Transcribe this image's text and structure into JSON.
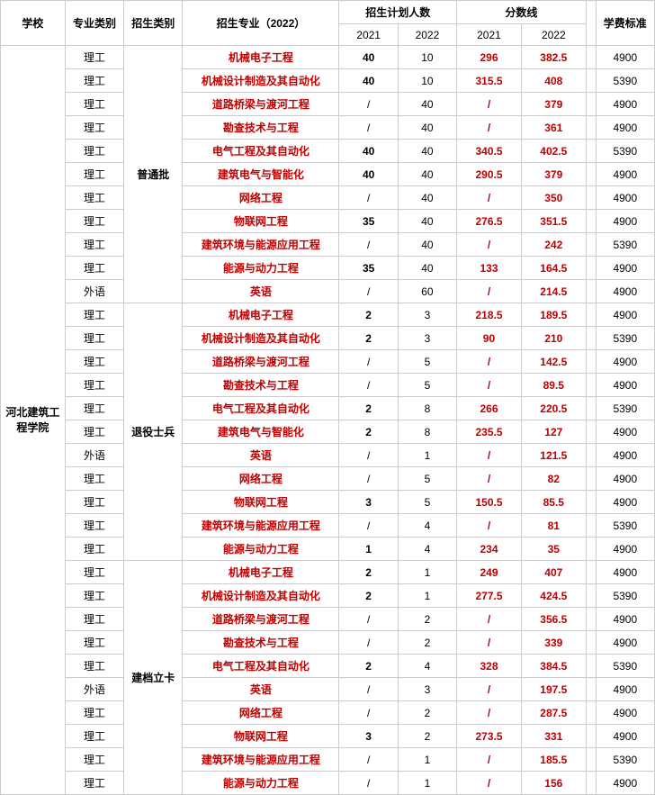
{
  "headers": {
    "school": "学校",
    "major_type": "专业类别",
    "admit_type": "招生类别",
    "major_2022": "招生专业（2022）",
    "plan_count": "招生计划人数",
    "score_line": "分数线",
    "tuition": "学费标准",
    "y2021": "2021",
    "y2022": "2022"
  },
  "school_name": "河北建筑工程学院",
  "colors": {
    "red": "#c00000",
    "black": "#000000",
    "border": "#cccccc",
    "bg": "#ffffff"
  },
  "col_widths": {
    "school": 66,
    "major_type": 60,
    "admit_type": 60,
    "major": 160,
    "plan_2021": 60,
    "plan_2022": 60,
    "score_2021": 66,
    "score_2022": 66,
    "tuition": 60,
    "spacer": 10
  },
  "groups": [
    {
      "admit_type": "普通批",
      "rows": [
        {
          "mt": "理工",
          "major": "机械电子工程",
          "p21": "40",
          "p21c": "b",
          "p22": "10",
          "p22c": "p",
          "s21": "296",
          "s21c": "r",
          "s22": "382.5",
          "s22c": "r",
          "tu": "4900"
        },
        {
          "mt": "理工",
          "major": "机械设计制造及其自动化",
          "p21": "40",
          "p21c": "b",
          "p22": "10",
          "p22c": "p",
          "s21": "315.5",
          "s21c": "r",
          "s22": "408",
          "s22c": "r",
          "tu": "5390"
        },
        {
          "mt": "理工",
          "major": "道路桥梁与渡河工程",
          "p21": "/",
          "p21c": "p",
          "p22": "40",
          "p22c": "p",
          "s21": "/",
          "s21c": "r",
          "s22": "379",
          "s22c": "r",
          "tu": "4900"
        },
        {
          "mt": "理工",
          "major": "勘查技术与工程",
          "p21": "/",
          "p21c": "p",
          "p22": "40",
          "p22c": "p",
          "s21": "/",
          "s21c": "r",
          "s22": "361",
          "s22c": "r",
          "tu": "4900"
        },
        {
          "mt": "理工",
          "major": "电气工程及其自动化",
          "p21": "40",
          "p21c": "b",
          "p22": "40",
          "p22c": "p",
          "s21": "340.5",
          "s21c": "r",
          "s22": "402.5",
          "s22c": "r",
          "tu": "5390"
        },
        {
          "mt": "理工",
          "major": "建筑电气与智能化",
          "p21": "40",
          "p21c": "b",
          "p22": "40",
          "p22c": "p",
          "s21": "290.5",
          "s21c": "r",
          "s22": "379",
          "s22c": "r",
          "tu": "4900"
        },
        {
          "mt": "理工",
          "major": "网络工程",
          "p21": "/",
          "p21c": "p",
          "p22": "40",
          "p22c": "p",
          "s21": "/",
          "s21c": "r",
          "s22": "350",
          "s22c": "r",
          "tu": "4900"
        },
        {
          "mt": "理工",
          "major": "物联网工程",
          "p21": "35",
          "p21c": "b",
          "p22": "40",
          "p22c": "p",
          "s21": "276.5",
          "s21c": "r",
          "s22": "351.5",
          "s22c": "r",
          "tu": "4900"
        },
        {
          "mt": "理工",
          "major": "建筑环境与能源应用工程",
          "p21": "/",
          "p21c": "p",
          "p22": "40",
          "p22c": "p",
          "s21": "/",
          "s21c": "r",
          "s22": "242",
          "s22c": "r",
          "tu": "5390"
        },
        {
          "mt": "理工",
          "major": "能源与动力工程",
          "p21": "35",
          "p21c": "b",
          "p22": "40",
          "p22c": "p",
          "s21": "133",
          "s21c": "r",
          "s22": "164.5",
          "s22c": "r",
          "tu": "4900"
        },
        {
          "mt": "外语",
          "major": "英语",
          "p21": "/",
          "p21c": "p",
          "p22": "60",
          "p22c": "p",
          "s21": "/",
          "s21c": "r",
          "s22": "214.5",
          "s22c": "r",
          "tu": "4900"
        }
      ]
    },
    {
      "admit_type": "退役士兵",
      "rows": [
        {
          "mt": "理工",
          "major": "机械电子工程",
          "p21": "2",
          "p21c": "b",
          "p22": "3",
          "p22c": "p",
          "s21": "218.5",
          "s21c": "r",
          "s22": "189.5",
          "s22c": "r",
          "tu": "4900"
        },
        {
          "mt": "理工",
          "major": "机械设计制造及其自动化",
          "p21": "2",
          "p21c": "b",
          "p22": "3",
          "p22c": "p",
          "s21": "90",
          "s21c": "r",
          "s22": "210",
          "s22c": "r",
          "tu": "5390"
        },
        {
          "mt": "理工",
          "major": "道路桥梁与渡河工程",
          "p21": "/",
          "p21c": "p",
          "p22": "5",
          "p22c": "p",
          "s21": "/",
          "s21c": "r",
          "s22": "142.5",
          "s22c": "r",
          "tu": "4900"
        },
        {
          "mt": "理工",
          "major": "勘查技术与工程",
          "p21": "/",
          "p21c": "p",
          "p22": "5",
          "p22c": "p",
          "s21": "/",
          "s21c": "r",
          "s22": "89.5",
          "s22c": "r",
          "tu": "4900"
        },
        {
          "mt": "理工",
          "major": "电气工程及其自动化",
          "p21": "2",
          "p21c": "b",
          "p22": "8",
          "p22c": "p",
          "s21": "266",
          "s21c": "r",
          "s22": "220.5",
          "s22c": "r",
          "tu": "5390"
        },
        {
          "mt": "理工",
          "major": "建筑电气与智能化",
          "p21": "2",
          "p21c": "b",
          "p22": "8",
          "p22c": "p",
          "s21": "235.5",
          "s21c": "r",
          "s22": "127",
          "s22c": "r",
          "tu": "4900"
        },
        {
          "mt": "外语",
          "major": "英语",
          "p21": "/",
          "p21c": "p",
          "p22": "1",
          "p22c": "p",
          "s21": "/",
          "s21c": "r",
          "s22": "121.5",
          "s22c": "r",
          "tu": "4900"
        },
        {
          "mt": "理工",
          "major": "网络工程",
          "p21": "/",
          "p21c": "p",
          "p22": "5",
          "p22c": "p",
          "s21": "/",
          "s21c": "r",
          "s22": "82",
          "s22c": "r",
          "tu": "4900"
        },
        {
          "mt": "理工",
          "major": "物联网工程",
          "p21": "3",
          "p21c": "b",
          "p22": "5",
          "p22c": "p",
          "s21": "150.5",
          "s21c": "r",
          "s22": "85.5",
          "s22c": "r",
          "tu": "4900"
        },
        {
          "mt": "理工",
          "major": "建筑环境与能源应用工程",
          "p21": "/",
          "p21c": "p",
          "p22": "4",
          "p22c": "p",
          "s21": "/",
          "s21c": "r",
          "s22": "81",
          "s22c": "r",
          "tu": "5390"
        },
        {
          "mt": "理工",
          "major": "能源与动力工程",
          "p21": "1",
          "p21c": "b",
          "p22": "4",
          "p22c": "p",
          "s21": "234",
          "s21c": "r",
          "s22": "35",
          "s22c": "r",
          "tu": "4900"
        }
      ]
    },
    {
      "admit_type": "建档立卡",
      "rows": [
        {
          "mt": "理工",
          "major": "机械电子工程",
          "p21": "2",
          "p21c": "b",
          "p22": "1",
          "p22c": "p",
          "s21": "249",
          "s21c": "r",
          "s22": "407",
          "s22c": "r",
          "tu": "4900"
        },
        {
          "mt": "理工",
          "major": "机械设计制造及其自动化",
          "p21": "2",
          "p21c": "b",
          "p22": "1",
          "p22c": "p",
          "s21": "277.5",
          "s21c": "r",
          "s22": "424.5",
          "s22c": "r",
          "tu": "5390"
        },
        {
          "mt": "理工",
          "major": "道路桥梁与渡河工程",
          "p21": "/",
          "p21c": "p",
          "p22": "2",
          "p22c": "p",
          "s21": "/",
          "s21c": "r",
          "s22": "356.5",
          "s22c": "r",
          "tu": "4900"
        },
        {
          "mt": "理工",
          "major": "勘查技术与工程",
          "p21": "/",
          "p21c": "p",
          "p22": "2",
          "p22c": "p",
          "s21": "/",
          "s21c": "r",
          "s22": "339",
          "s22c": "r",
          "tu": "4900"
        },
        {
          "mt": "理工",
          "major": "电气工程及其自动化",
          "p21": "2",
          "p21c": "b",
          "p22": "4",
          "p22c": "p",
          "s21": "328",
          "s21c": "r",
          "s22": "384.5",
          "s22c": "r",
          "tu": "5390"
        },
        {
          "mt": "外语",
          "major": "英语",
          "p21": "/",
          "p21c": "p",
          "p22": "3",
          "p22c": "p",
          "s21": "/",
          "s21c": "r",
          "s22": "197.5",
          "s22c": "r",
          "tu": "4900"
        },
        {
          "mt": "理工",
          "major": "网络工程",
          "p21": "/",
          "p21c": "p",
          "p22": "2",
          "p22c": "p",
          "s21": "/",
          "s21c": "r",
          "s22": "287.5",
          "s22c": "r",
          "tu": "4900"
        },
        {
          "mt": "理工",
          "major": "物联网工程",
          "p21": "3",
          "p21c": "b",
          "p22": "2",
          "p22c": "p",
          "s21": "273.5",
          "s21c": "r",
          "s22": "331",
          "s22c": "r",
          "tu": "4900"
        },
        {
          "mt": "理工",
          "major": "建筑环境与能源应用工程",
          "p21": "/",
          "p21c": "p",
          "p22": "1",
          "p22c": "p",
          "s21": "/",
          "s21c": "r",
          "s22": "185.5",
          "s22c": "r",
          "tu": "5390"
        },
        {
          "mt": "理工",
          "major": "能源与动力工程",
          "p21": "/",
          "p21c": "p",
          "p22": "1",
          "p22c": "p",
          "s21": "/",
          "s21c": "r",
          "s22": "156",
          "s22c": "r",
          "tu": "4900"
        }
      ]
    }
  ]
}
